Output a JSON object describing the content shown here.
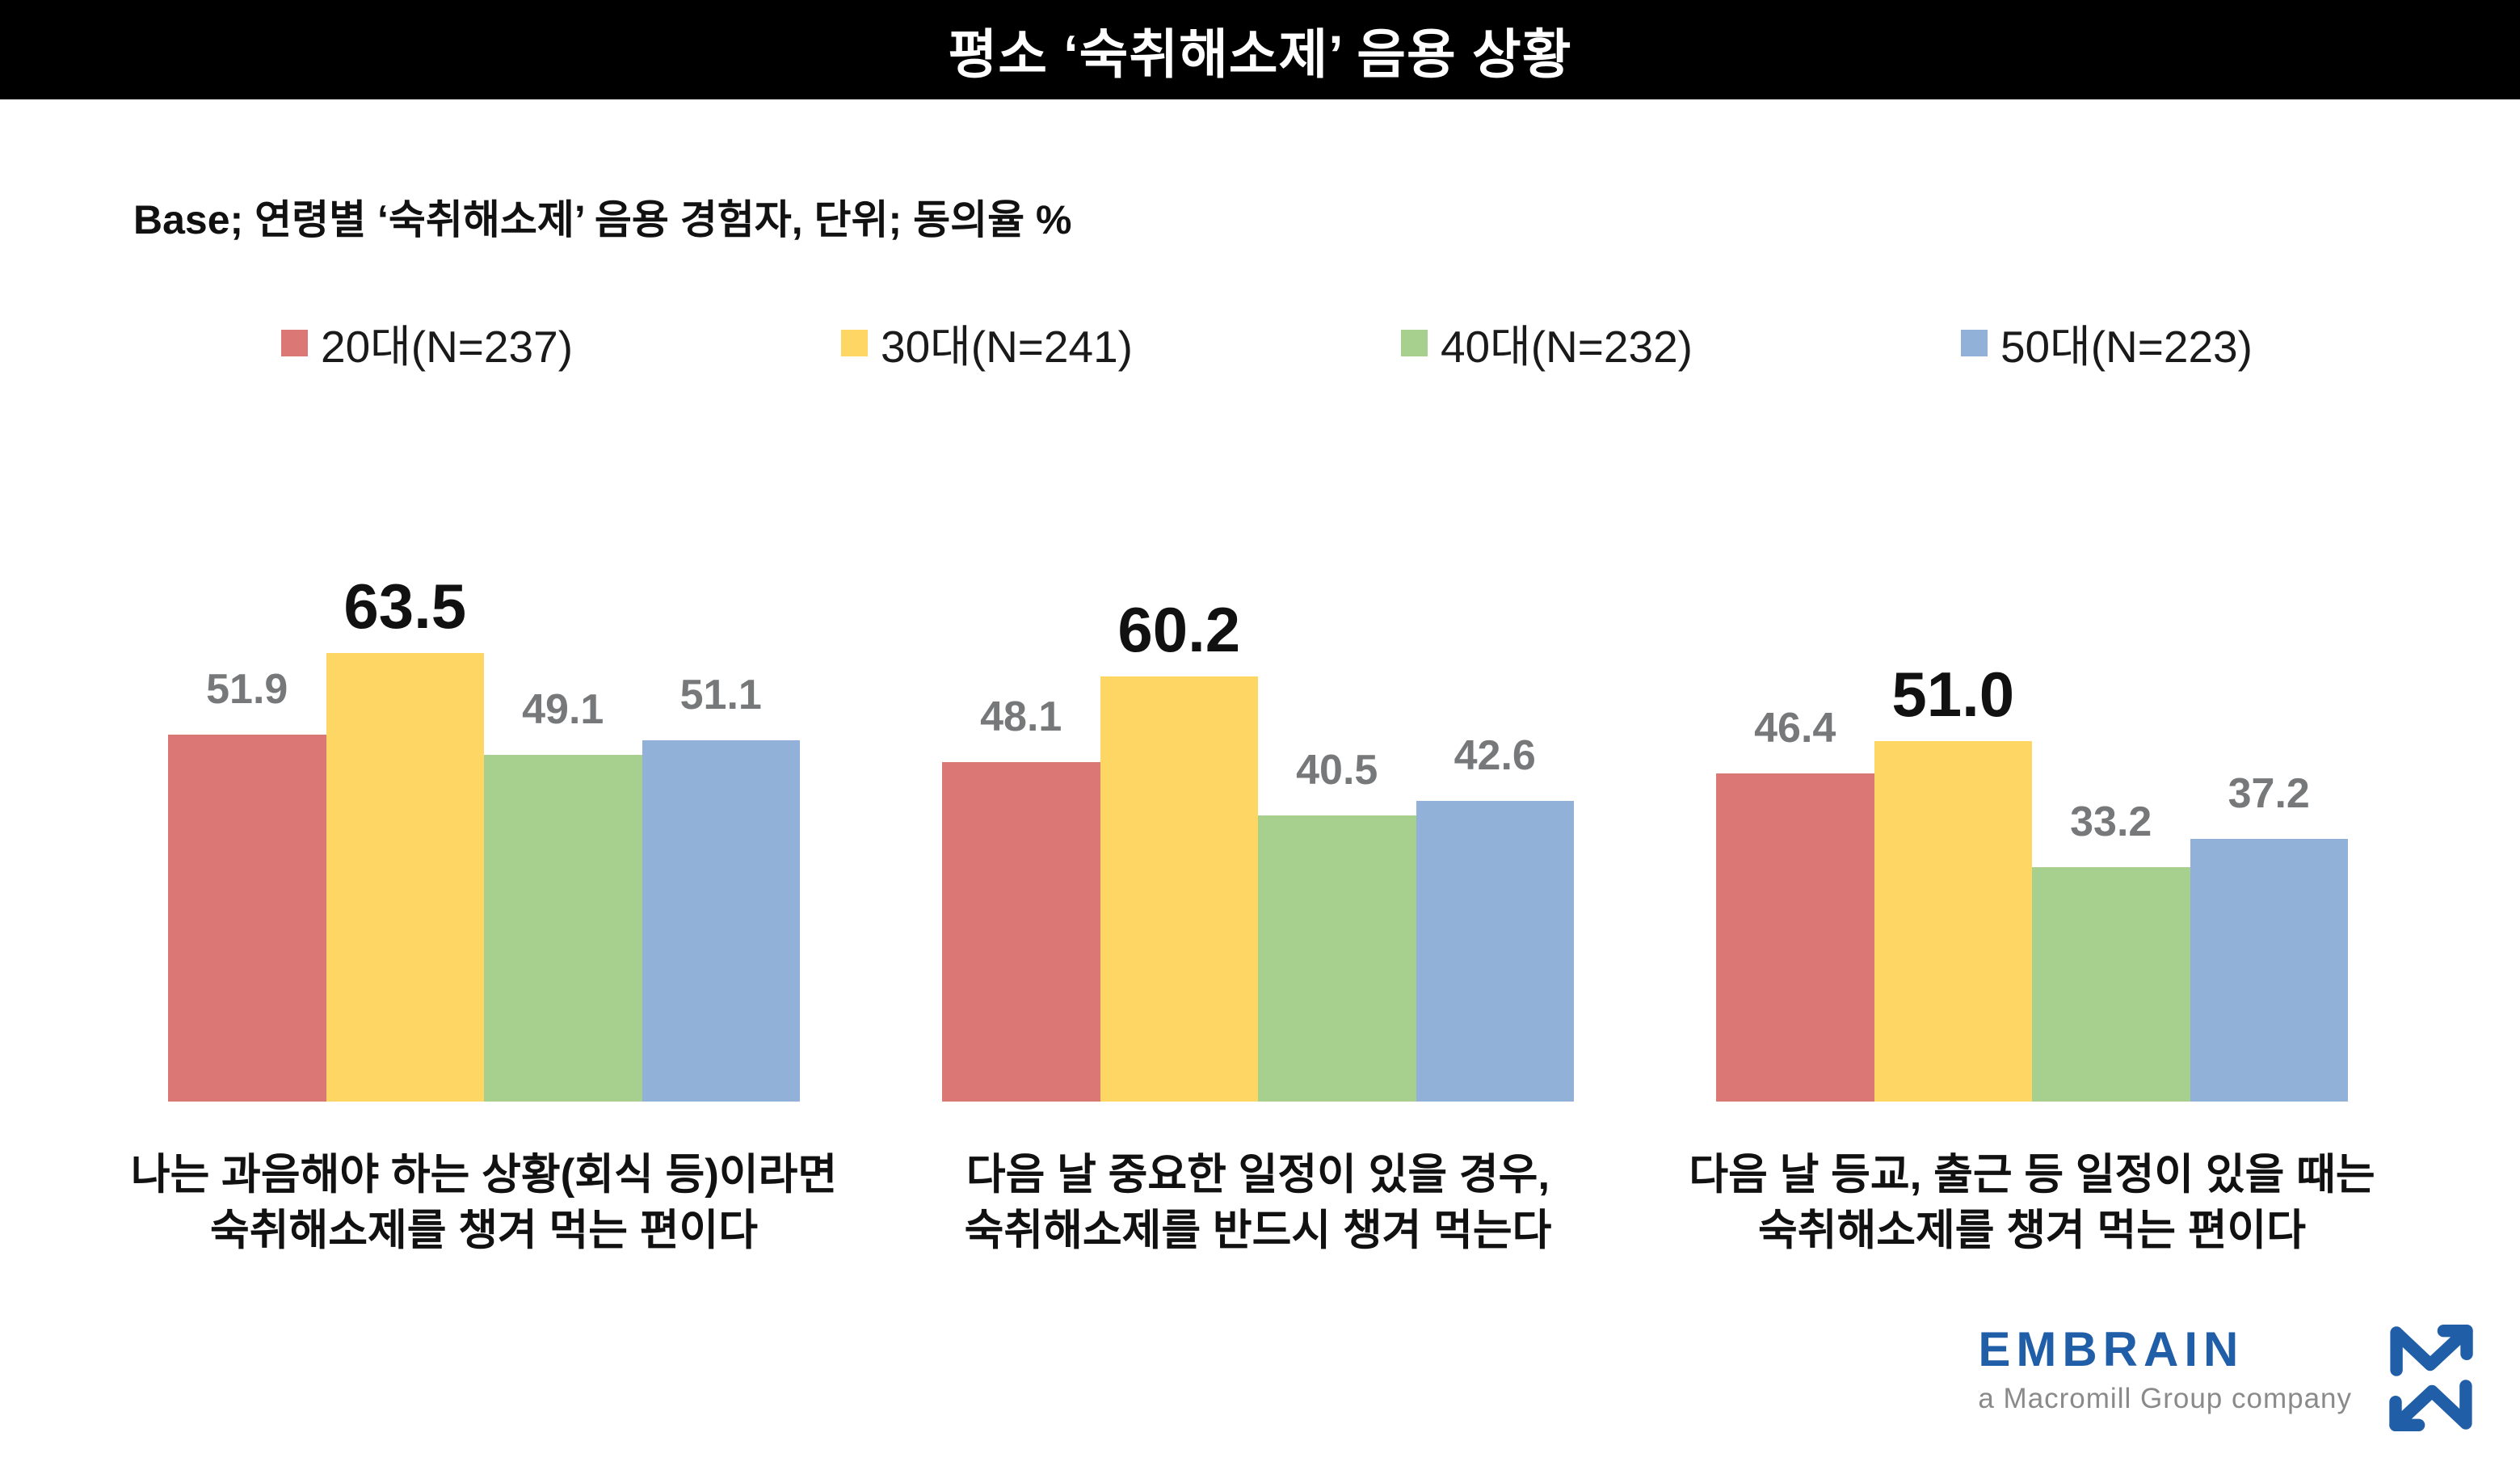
{
  "title": "평소 ‘숙취해소제’ 음용 상황",
  "base_note": "Base; 연령별 ‘숙취해소제’ 음용 경험자, 단위; 동의율 %",
  "legend": {
    "items": [
      {
        "label": "20대(N=237)",
        "color": "#db7775"
      },
      {
        "label": "30대(N=241)",
        "color": "#fdd664"
      },
      {
        "label": "40대(N=232)",
        "color": "#a7cf8d"
      },
      {
        "label": "50대(N=223)",
        "color": "#92b1d9"
      }
    ]
  },
  "chart_data": {
    "type": "bar",
    "title": "평소 ‘숙취해소제’ 음용 상황",
    "unit": "동의율 %",
    "ylim": [
      0,
      70
    ],
    "grid": false,
    "legend_position": "top",
    "group_labels": [
      "20대(N=237)",
      "30대(N=241)",
      "40대(N=232)",
      "50대(N=223)"
    ],
    "series": [
      {
        "name": "20대(N=237)",
        "color": "#db7775",
        "values": [
          51.9,
          48.1,
          46.4
        ]
      },
      {
        "name": "30대(N=241)",
        "color": "#fdd664",
        "values": [
          63.5,
          60.2,
          51.0
        ]
      },
      {
        "name": "40대(N=232)",
        "color": "#a7cf8d",
        "values": [
          49.1,
          40.5,
          33.2
        ]
      },
      {
        "name": "50대(N=223)",
        "color": "#92b1d9",
        "values": [
          51.1,
          42.6,
          37.2
        ]
      }
    ],
    "questions": [
      {
        "caption": [
          "나는 과음해야 하는 상황(회식 등)이라면",
          "숙취해소제를 챙겨 먹는 편이다"
        ],
        "values": [
          {
            "group": "20대(N=237)",
            "value": 51.9,
            "label": "51.9",
            "emphasis": false
          },
          {
            "group": "30대(N=241)",
            "value": 63.5,
            "label": "63.5",
            "emphasis": true
          },
          {
            "group": "40대(N=232)",
            "value": 49.1,
            "label": "49.1",
            "emphasis": false
          },
          {
            "group": "50대(N=223)",
            "value": 51.1,
            "label": "51.1",
            "emphasis": false
          }
        ]
      },
      {
        "caption": [
          "다음 날 중요한 일정이 있을 경우,",
          "숙취해소제를 반드시 챙겨 먹는다"
        ],
        "values": [
          {
            "group": "20대(N=237)",
            "value": 48.1,
            "label": "48.1",
            "emphasis": false
          },
          {
            "group": "30대(N=241)",
            "value": 60.2,
            "label": "60.2",
            "emphasis": true
          },
          {
            "group": "40대(N=232)",
            "value": 40.5,
            "label": "40.5",
            "emphasis": false
          },
          {
            "group": "50대(N=223)",
            "value": 42.6,
            "label": "42.6",
            "emphasis": false
          }
        ]
      },
      {
        "caption": [
          "다음 날 등교, 출근 등 일정이 있을 때는",
          "숙취해소제를 챙겨 먹는 편이다"
        ],
        "values": [
          {
            "group": "20대(N=237)",
            "value": 46.4,
            "label": "46.4",
            "emphasis": false
          },
          {
            "group": "30대(N=241)",
            "value": 51.0,
            "label": "51.0",
            "emphasis": true
          },
          {
            "group": "40대(N=232)",
            "value": 33.2,
            "label": "33.2",
            "emphasis": false
          },
          {
            "group": "50대(N=223)",
            "value": 37.2,
            "label": "37.2",
            "emphasis": false
          }
        ]
      }
    ]
  },
  "colors": {
    "banner": "#000000",
    "title_text": "#ffffff",
    "value_label_gray": "#76787a",
    "value_label_emphasis": "#111111",
    "logo_blue": "#205ea8",
    "tagline_gray": "#8a8a8a"
  },
  "logo": {
    "name": "EMBRAIN",
    "tagline": "a Macromill Group company"
  }
}
